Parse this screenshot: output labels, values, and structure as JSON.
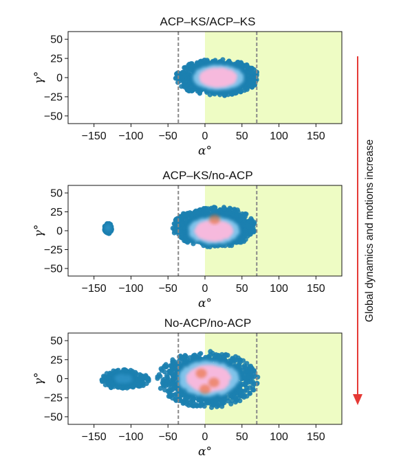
{
  "side_annotation": {
    "text": "Global dynamics and motions increase",
    "arrow_color": "#e53935"
  },
  "colors": {
    "highlight_region": "#eefcc4",
    "reference_line": "#888888",
    "density_low": "#1c7fb0",
    "density_mid": "#7fc3ea",
    "density_high": "#f5b8dc",
    "density_peak": "#e8641e"
  },
  "chart_data": [
    {
      "type": "scatter",
      "title": "ACP–KS/ACP–KS",
      "xlabel": "α°",
      "ylabel": "γ°",
      "xlim": [
        -185,
        185
      ],
      "ylim": [
        -60,
        60
      ],
      "xticks": [
        -150,
        -100,
        -50,
        0,
        50,
        100,
        150
      ],
      "yticks": [
        50,
        25,
        0,
        -25,
        -50
      ],
      "xtick_labels": [
        "−150",
        "−100",
        "−50",
        "0",
        "50",
        "100",
        "150"
      ],
      "ytick_labels": [
        "50",
        "25",
        "0",
        "−25",
        "−50"
      ],
      "shaded_region": {
        "x": [
          0,
          185
        ]
      },
      "reference_lines_x": [
        -36,
        70
      ],
      "clusters": [
        {
          "center": [
            18,
            0
          ],
          "x_range": [
            -40,
            73
          ],
          "y_range": [
            -24,
            24
          ],
          "density": "high",
          "hot_spots": []
        }
      ]
    },
    {
      "type": "scatter",
      "title": "ACP–KS/no-ACP",
      "xlabel": "α°",
      "ylabel": "γ°",
      "xlim": [
        -185,
        185
      ],
      "ylim": [
        -60,
        60
      ],
      "xticks": [
        -150,
        -100,
        -50,
        0,
        50,
        100,
        150
      ],
      "yticks": [
        50,
        25,
        0,
        -25,
        -50
      ],
      "xtick_labels": [
        "−150",
        "−100",
        "−50",
        "0",
        "50",
        "100",
        "150"
      ],
      "ytick_labels": [
        "50",
        "25",
        "0",
        "−25",
        "−50"
      ],
      "shaded_region": {
        "x": [
          0,
          185
        ]
      },
      "reference_lines_x": [
        -36,
        70
      ],
      "clusters": [
        {
          "center": [
            -131,
            4
          ],
          "x_range": [
            -136,
            -126
          ],
          "y_range": [
            -4,
            10
          ],
          "density": "low",
          "hot_spots": []
        },
        {
          "center": [
            12,
            0
          ],
          "x_range": [
            -44,
            70
          ],
          "y_range": [
            -22,
            32
          ],
          "density": "high",
          "hot_spots": [
            [
              13,
              15
            ]
          ]
        }
      ]
    },
    {
      "type": "scatter",
      "title": "No-ACP/no-ACP",
      "xlabel": "α°",
      "ylabel": "γ°",
      "xlim": [
        -185,
        185
      ],
      "ylim": [
        -60,
        60
      ],
      "xticks": [
        -150,
        -100,
        -50,
        0,
        50,
        100,
        150
      ],
      "yticks": [
        50,
        25,
        0,
        -25,
        -50
      ],
      "xtick_labels": [
        "−150",
        "−100",
        "−50",
        "0",
        "50",
        "100",
        "150"
      ],
      "ytick_labels": [
        "50",
        "25",
        "0",
        "−25",
        "−50"
      ],
      "shaded_region": {
        "x": [
          0,
          185
        ]
      },
      "reference_lines_x": [
        -36,
        70
      ],
      "clusters": [
        {
          "center": [
            -110,
            0
          ],
          "x_range": [
            -142,
            -75
          ],
          "y_range": [
            -14,
            12
          ],
          "density": "low",
          "hot_spots": []
        },
        {
          "center": [
            5,
            0
          ],
          "x_range": [
            -65,
            72
          ],
          "y_range": [
            -38,
            36
          ],
          "density": "high",
          "hot_spots": [
            [
              -5,
              7
            ],
            [
              12,
              -5
            ],
            [
              0,
              -14
            ]
          ]
        }
      ]
    }
  ]
}
